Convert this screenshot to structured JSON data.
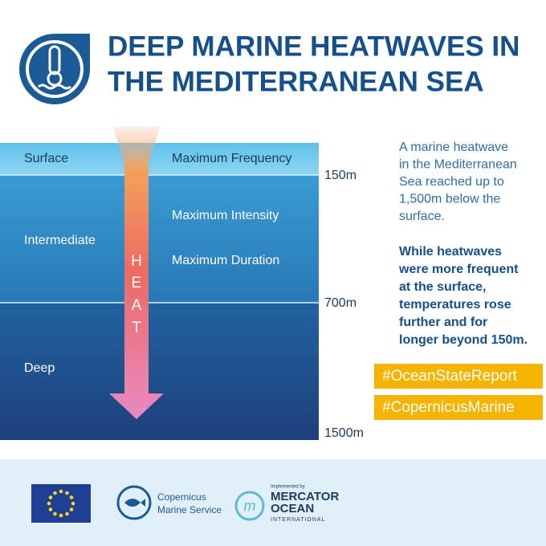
{
  "header": {
    "title_lines": [
      "DEEP MARINE HEATWAVES IN",
      "THE MEDITERRANEAN SEA"
    ]
  },
  "ocean": {
    "layers": [
      "Surface",
      "Intermediate",
      "Deep"
    ],
    "features": [
      "Maximum Frequency",
      "Maximum Intensity",
      "Maximum Duration"
    ],
    "depths": [
      "150m",
      "700m",
      "1500m"
    ],
    "heat_letters": [
      "H",
      "E",
      "A",
      "T"
    ]
  },
  "side": {
    "intro_lines": [
      "A marine heatwave",
      "in the Mediterranean",
      "Sea reached up to",
      "1,500m below the",
      "surface."
    ],
    "bold_lines": [
      "While heatwaves",
      "were more frequent",
      "at the surface,",
      "temperatures rose",
      "further and for",
      "longer beyond 150m."
    ],
    "hashtags": [
      "#OceanStateReport",
      "#CopernicusMarine"
    ]
  },
  "footer": {
    "copernicus_lines": [
      "Copernicus",
      "Marine Service"
    ],
    "implemented_by": "Implemented by",
    "mercator_lines": [
      "MERCATOR",
      "OCEAN"
    ],
    "international": "INTERNATIONAL"
  }
}
